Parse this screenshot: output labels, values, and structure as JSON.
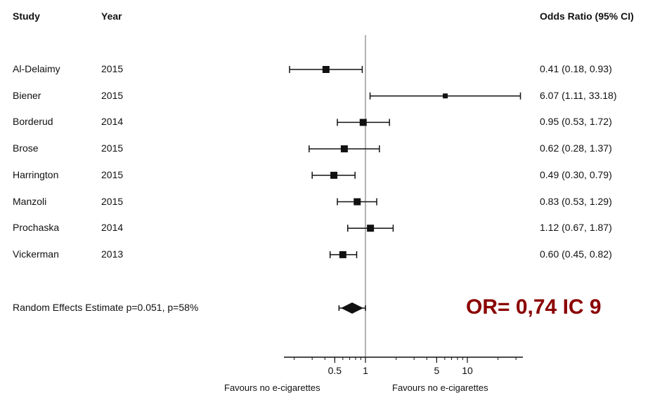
{
  "headers": {
    "study": "Study",
    "year": "Year",
    "estimate": "Odds Ratio (95% CI)"
  },
  "chart_data": {
    "type": "forest",
    "x_scale": "log",
    "x_ticks": [
      {
        "value": 0.5,
        "label": "0.5"
      },
      {
        "value": 1,
        "label": "1"
      },
      {
        "value": 5,
        "label": "5"
      },
      {
        "value": 10,
        "label": "10"
      }
    ],
    "reference_line": 1,
    "studies": [
      {
        "name": "Al-Delaimy",
        "year": "2015",
        "or": 0.41,
        "lo": 0.18,
        "hi": 0.93,
        "label": "0.41 (0.18, 0.93)"
      },
      {
        "name": "Biener",
        "year": "2015",
        "or": 6.07,
        "lo": 1.11,
        "hi": 33.18,
        "label": "6.07 (1.11, 33.18)"
      },
      {
        "name": "Borderud",
        "year": "2014",
        "or": 0.95,
        "lo": 0.53,
        "hi": 1.72,
        "label": "0.95 (0.53, 1.72)"
      },
      {
        "name": "Brose",
        "year": "2015",
        "or": 0.62,
        "lo": 0.28,
        "hi": 1.37,
        "label": "0.62 (0.28, 1.37)"
      },
      {
        "name": "Harrington",
        "year": "2015",
        "or": 0.49,
        "lo": 0.3,
        "hi": 0.79,
        "label": "0.49 (0.30, 0.79)"
      },
      {
        "name": "Manzoli",
        "year": "2015",
        "or": 0.83,
        "lo": 0.53,
        "hi": 1.29,
        "label": "0.83 (0.53, 1.29)"
      },
      {
        "name": "Prochaska",
        "year": "2014",
        "or": 1.12,
        "lo": 0.67,
        "hi": 1.87,
        "label": "1.12 (0.67, 1.87)"
      },
      {
        "name": "Vickerman",
        "year": "2013",
        "or": 0.6,
        "lo": 0.45,
        "hi": 0.82,
        "label": "0.60 (0.45, 0.82)"
      }
    ],
    "pooled": {
      "label": "Random Effects Estimate p=0.051, p=58%",
      "or": 0.74,
      "lo": 0.55,
      "hi": 1.0
    },
    "x_captions": [
      "Favours no e-cigarettes",
      "Favours no e-cigarettes"
    ],
    "annotation": "OR= 0,74 IC 9",
    "colors": {
      "marks": "#111111",
      "reference": "#9a9a9a",
      "annotation": "#8b0000"
    }
  }
}
